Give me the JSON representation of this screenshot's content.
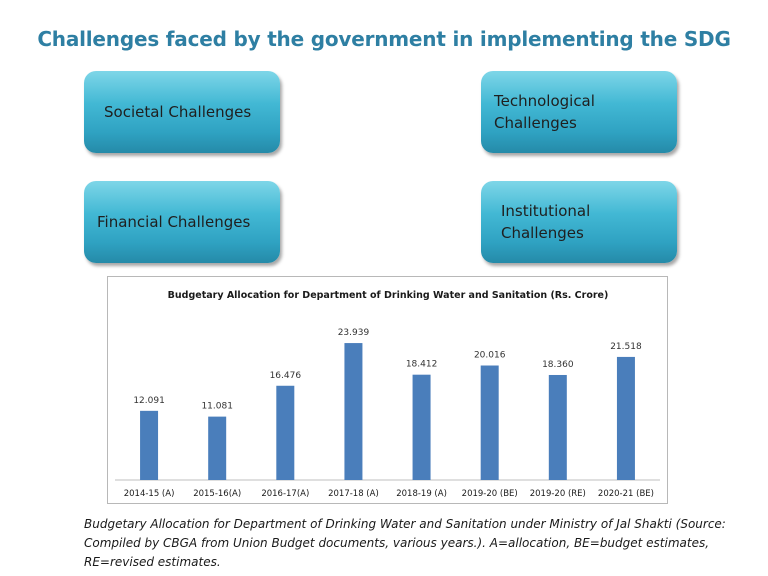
{
  "title": "Challenges faced by the government in implementing the SDG",
  "boxes": [
    {
      "label": "Societal Challenges"
    },
    {
      "label": "Technological Challenges"
    },
    {
      "label": "Financial Challenges"
    },
    {
      "label": "Institutional Challenges"
    }
  ],
  "colors": {
    "box_fill": "#36aecb",
    "title": "#2e7fa3",
    "bar": "#4a7ebb"
  },
  "chart_data": {
    "type": "bar",
    "title": "Budgetary Allocation for Department of Drinking Water and Sanitation  (Rs. Crore)",
    "categories": [
      "2014-15 (A)",
      "2015-16(A)",
      "2016-17(A)",
      "2017-18 (A)",
      "2018-19 (A)",
      "2019-20 (BE)",
      "2019-20 (RE)",
      "2020-21 (BE)"
    ],
    "values": [
      12.091,
      11.081,
      16.476,
      23.939,
      18.412,
      20.016,
      18.36,
      21.518
    ],
    "labels": [
      "12.091",
      "11.081",
      "16.476",
      "23.939",
      "18.412",
      "20.016",
      "18.360",
      "21.518"
    ],
    "xlabel": "",
    "ylabel": "",
    "ylim": [
      0,
      25
    ],
    "grid": false,
    "legend": "none"
  },
  "caption": "Budgetary Allocation for Department of Drinking Water and Sanitation under Ministry of Jal Shakti (Source: Compiled by CBGA from Union Budget documents, various years.). A=allocation, BE=budget estimates, RE=revised estimates."
}
